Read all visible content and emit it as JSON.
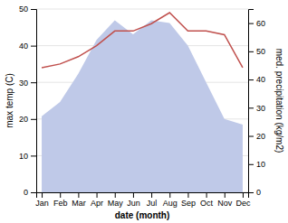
{
  "chart_data": {
    "type": "line",
    "categories": [
      "Jan",
      "Feb",
      "Mar",
      "Apr",
      "May",
      "Jun",
      "Jul",
      "Aug",
      "Sep",
      "Oct",
      "Nov",
      "Dec"
    ],
    "series": [
      {
        "type": "area",
        "axis": "y2",
        "color": "#bfc9e8",
        "values": [
          27,
          32,
          42,
          54,
          61,
          56,
          61,
          60,
          52,
          39,
          26,
          24
        ]
      },
      {
        "type": "line",
        "color": "#c0504d",
        "values": [
          34,
          35,
          37,
          40,
          44,
          44,
          46,
          49,
          44,
          44,
          43,
          34
        ]
      }
    ],
    "xlabel": "date (month)",
    "ylabel": "max temp (C)",
    "y2label": "med. precipitation (kg/m2)",
    "ylim": [
      0,
      50
    ],
    "yticks": [
      0,
      10,
      20,
      30,
      40,
      50
    ],
    "y2lim": [
      0,
      65
    ],
    "y2ticks": [
      0,
      10,
      20,
      30,
      40,
      50,
      60
    ],
    "grid": true
  }
}
